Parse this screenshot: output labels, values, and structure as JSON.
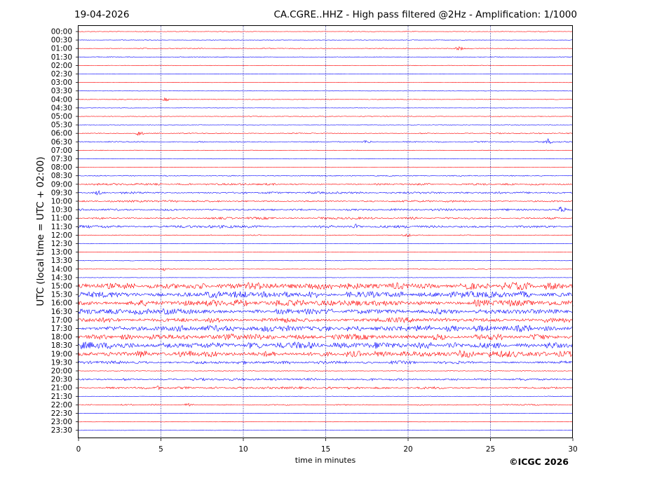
{
  "header": {
    "date": "19-04-2026",
    "title": "CA.CGRE..HHZ - High pass filtered @2Hz - Amplification: 1/1000"
  },
  "copyright": "©ICGC 2026",
  "colors": {
    "odd_trace": "#ff0000",
    "even_trace": "#0000ff",
    "grid": "#000080",
    "frame": "#000000"
  },
  "chart_data": {
    "type": "line",
    "title": "CA.CGRE..HHZ - High pass filtered @2Hz - Amplification: 1/1000",
    "xlabel": "time in minutes",
    "ylabel": "UTC (local time = UTC + 02:00)",
    "xlim": [
      0,
      30
    ],
    "x_ticks": [
      "0",
      "5",
      "10",
      "15",
      "20",
      "25",
      "30"
    ],
    "x_grid_minutes": [
      5,
      10,
      15,
      20,
      25
    ],
    "y_ticks": [
      "00:00",
      "00:30",
      "01:00",
      "01:30",
      "02:00",
      "02:30",
      "03:00",
      "03:30",
      "04:00",
      "04:30",
      "05:00",
      "05:30",
      "06:00",
      "06:30",
      "07:00",
      "07:30",
      "08:00",
      "08:30",
      "09:00",
      "09:30",
      "10:00",
      "10:30",
      "11:00",
      "11:30",
      "12:00",
      "12:30",
      "13:00",
      "13:30",
      "14:00",
      "14:30",
      "15:00",
      "15:30",
      "16:00",
      "16:30",
      "17:00",
      "17:30",
      "18:00",
      "18:30",
      "19:00",
      "19:30",
      "20:00",
      "20:30",
      "21:00",
      "21:30",
      "22:00",
      "22:30",
      "23:00",
      "23:30"
    ],
    "trace_colors": [
      "#ff0000",
      "#0000ff"
    ],
    "noise_level": [
      0.1,
      0.08,
      0.14,
      0.12,
      0.08,
      0.06,
      0.06,
      0.06,
      0.1,
      0.06,
      0.1,
      0.08,
      0.16,
      0.18,
      0.1,
      0.08,
      0.08,
      0.14,
      0.28,
      0.3,
      0.28,
      0.3,
      0.32,
      0.4,
      0.12,
      0.08,
      0.06,
      0.08,
      0.1,
      0.06,
      1.0,
      0.95,
      1.0,
      0.8,
      0.75,
      0.9,
      0.85,
      1.0,
      1.0,
      0.45,
      0.1,
      0.35,
      0.32,
      0.08,
      0.18,
      0.06,
      0.06,
      0.05
    ],
    "events": [
      {
        "row": 2,
        "minute": 23.1,
        "amplitude": 0.5
      },
      {
        "row": 8,
        "minute": 5.3,
        "amplitude": 0.4
      },
      {
        "row": 12,
        "minute": 3.7,
        "amplitude": 0.7
      },
      {
        "row": 13,
        "minute": 17.5,
        "amplitude": 0.5
      },
      {
        "row": 13,
        "minute": 28.5,
        "amplitude": 0.8
      },
      {
        "row": 19,
        "minute": 1.2,
        "amplitude": 0.6
      },
      {
        "row": 21,
        "minute": 29.3,
        "amplitude": 1.0
      },
      {
        "row": 23,
        "minute": 16.9,
        "amplitude": 0.6
      },
      {
        "row": 24,
        "minute": 19.9,
        "amplitude": 0.5
      },
      {
        "row": 28,
        "minute": 5.2,
        "amplitude": 0.4
      },
      {
        "row": 42,
        "minute": 4.8,
        "amplitude": 0.5
      },
      {
        "row": 44,
        "minute": 6.7,
        "amplitude": 0.6
      }
    ]
  }
}
